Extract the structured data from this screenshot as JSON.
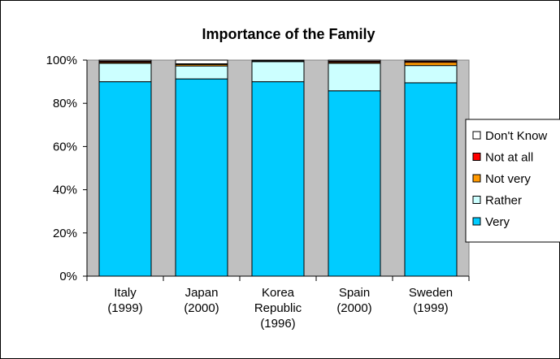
{
  "chart_data": {
    "type": "bar",
    "stacked": true,
    "normalized": true,
    "title": "Importance of the Family",
    "xlabel": "",
    "ylabel": "",
    "ylim": [
      0,
      100
    ],
    "yticks": [
      "0%",
      "20%",
      "40%",
      "60%",
      "80%",
      "100%"
    ],
    "categories": [
      [
        "Italy",
        "(1999)"
      ],
      [
        "Japan",
        "(2000)"
      ],
      [
        "Korea",
        "Republic",
        "(1996)"
      ],
      [
        "Spain",
        "(2000)"
      ],
      [
        "Sweden",
        "(1999)"
      ]
    ],
    "series": [
      {
        "name": "Very",
        "color": "#00ccff",
        "values": [
          90.0,
          91.3,
          90.0,
          85.8,
          89.5
        ]
      },
      {
        "name": "Rather",
        "color": "#ccffff",
        "values": [
          8.5,
          6.0,
          9.3,
          12.7,
          8.0
        ]
      },
      {
        "name": "Not very",
        "color": "#ff9900",
        "values": [
          0.5,
          0.7,
          0.3,
          0.5,
          1.5
        ]
      },
      {
        "name": "Not at all",
        "color": "#ff0000",
        "values": [
          0.5,
          0.3,
          0.1,
          0.5,
          0.5
        ]
      },
      {
        "name": "Don't Know",
        "color": "#ffffff",
        "values": [
          0.5,
          1.7,
          0.3,
          0.5,
          0.5
        ]
      }
    ],
    "legend_order": [
      "Don't Know",
      "Not at all",
      "Not very",
      "Rather",
      "Very"
    ],
    "legend_position": "right",
    "plot_background": "#c0c0c0",
    "grid": false
  }
}
